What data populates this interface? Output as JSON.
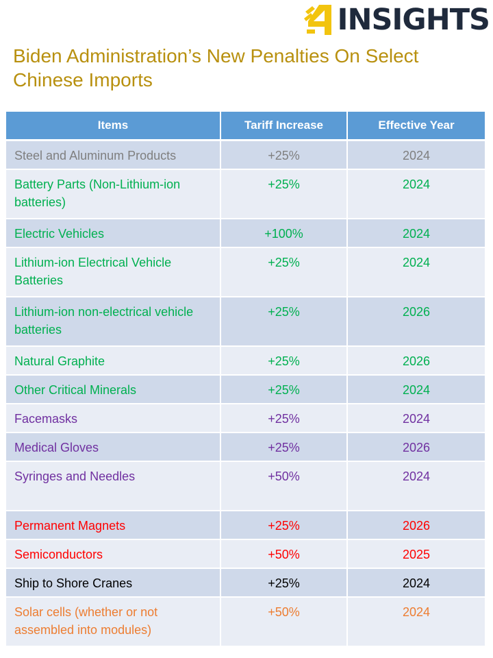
{
  "logo": {
    "text": "INSIGHTS",
    "icon": "hand-4-icon"
  },
  "title": "Biden Administration’s New Penalties On Select Chinese Imports",
  "table": {
    "headers": [
      "Items",
      "Tariff Increase",
      "Effective Year"
    ],
    "rows": [
      {
        "item": "Steel and Aluminum Products",
        "tariff": "+25%",
        "year": "2024",
        "color": "#7f7f7f"
      },
      {
        "item": "Battery Parts (Non-Lithium-ion batteries)",
        "tariff": "+25%",
        "year": "2024",
        "color": "#00b050"
      },
      {
        "item": "Electric Vehicles",
        "tariff": "+100%",
        "year": "2024",
        "color": "#00b050"
      },
      {
        "item": "Lithium-ion Electrical Vehicle Batteries",
        "tariff": "+25%",
        "year": "2024",
        "color": "#00b050"
      },
      {
        "item": "Lithium-ion non-electrical vehicle batteries",
        "tariff": "+25%",
        "year": "2026",
        "color": "#00b050"
      },
      {
        "item": "Natural Graphite",
        "tariff": "+25%",
        "year": "2026",
        "color": "#00b050"
      },
      {
        "item": "Other Critical Minerals",
        "tariff": "+25%",
        "year": "2024",
        "color": "#00b050"
      },
      {
        "item": "Facemasks",
        "tariff": "+25%",
        "year": "2024",
        "color": "#7030a0"
      },
      {
        "item": "Medical Gloves",
        "tariff": "+25%",
        "year": "2026",
        "color": "#7030a0"
      },
      {
        "item": "Syringes and Needles",
        "tariff": "+50%",
        "year": "2024",
        "color": "#7030a0"
      },
      {
        "item": "Permanent Magnets",
        "tariff": "+25%",
        "year": "2026",
        "color": "#ff0000"
      },
      {
        "item": "Semiconductors",
        "tariff": "+50%",
        "year": "2025",
        "color": "#ff0000"
      },
      {
        "item": "Ship to Shore Cranes",
        "tariff": "+25%",
        "year": "2024",
        "color": "#000000"
      },
      {
        "item": "Solar cells (whether or not assembled into modules)",
        "tariff": "+50%",
        "year": "2024",
        "color": "#ed7d31"
      }
    ]
  }
}
